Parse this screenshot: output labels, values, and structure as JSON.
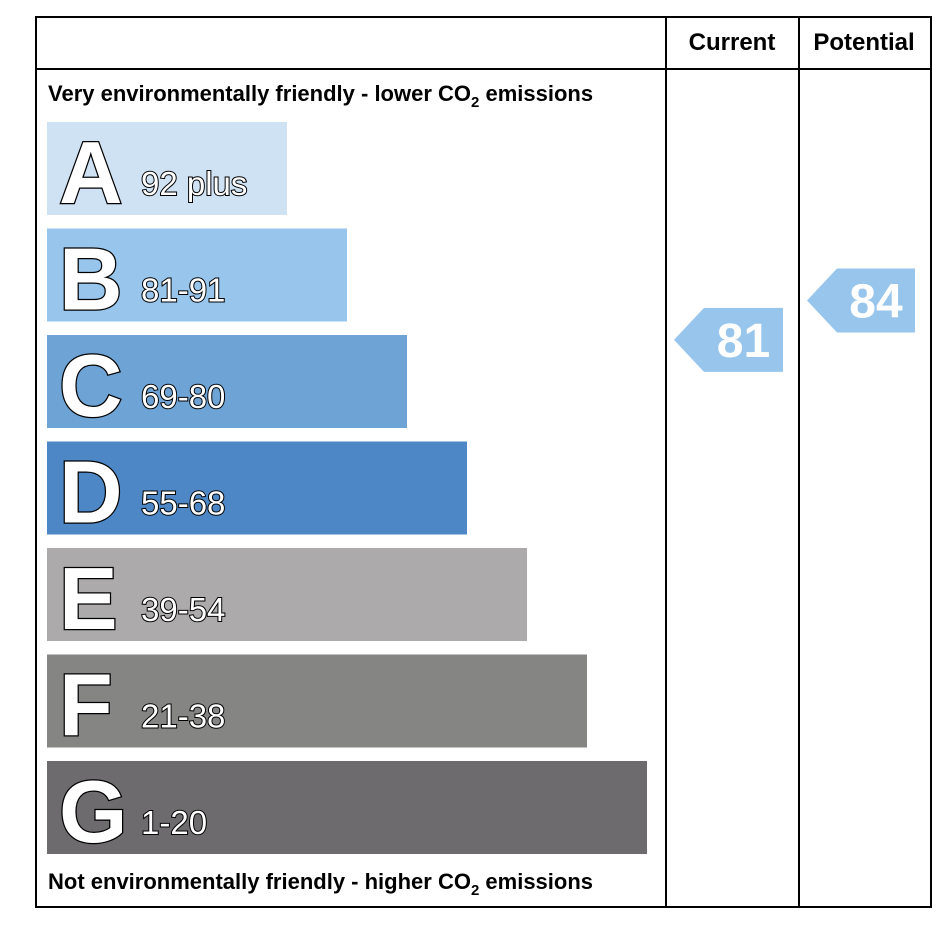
{
  "headers": {
    "current": "Current",
    "potential": "Potential"
  },
  "notes": {
    "top_prefix": "Very environmentally friendly - lower CO",
    "top_sub": "2",
    "top_suffix": " emissions",
    "bottom_prefix": "Not environmentally friendly - higher CO",
    "bottom_sub": "2",
    "bottom_suffix": " emissions"
  },
  "chart_data": {
    "type": "bar",
    "title": "",
    "bands": [
      {
        "letter": "A",
        "range": "92 plus",
        "color": "#cfe2f4"
      },
      {
        "letter": "B",
        "range": "81-91",
        "color": "#97c5ec"
      },
      {
        "letter": "C",
        "range": "69-80",
        "color": "#6ea3d5"
      },
      {
        "letter": "D",
        "range": "55-68",
        "color": "#4d87c5"
      },
      {
        "letter": "E",
        "range": "39-54",
        "color": "#acaaab"
      },
      {
        "letter": "F",
        "range": "21-38",
        "color": "#858684"
      },
      {
        "letter": "G",
        "range": "1-20",
        "color": "#6d6b6d"
      }
    ],
    "current": {
      "value": 81,
      "band": "B",
      "color": "#97c5ec"
    },
    "potential": {
      "value": 84,
      "band": "B",
      "color": "#97c5ec"
    }
  }
}
